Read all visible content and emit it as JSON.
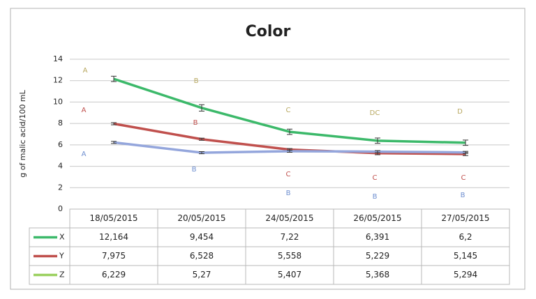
{
  "chart_data": {
    "type": "line",
    "title": "Color",
    "y_label": "g of malic acid/100 mL",
    "categories": [
      "18/05/2015",
      "20/05/2015",
      "24/05/2015",
      "26/05/2015",
      "27/05/2015"
    ],
    "ylim": [
      0,
      14
    ],
    "yticks": [
      0,
      2,
      4,
      6,
      8,
      10,
      12,
      14
    ],
    "grid": true,
    "series": [
      {
        "name": "X",
        "color": "#3cb96a",
        "key_color": "#3cb96a",
        "values": [
          12.164,
          9.454,
          7.22,
          6.391,
          6.2
        ],
        "value_labels": [
          "12,164",
          "9,454",
          "7,22",
          "6,391",
          "6,2"
        ],
        "errors": [
          0.25,
          0.3,
          0.25,
          0.25,
          0.25
        ],
        "letters": [
          "A",
          "B",
          "C",
          "DC",
          "D"
        ],
        "letter_color": "#b8a860"
      },
      {
        "name": "Y",
        "color": "#c0504d",
        "key_color": "#c0504d",
        "values": [
          7.975,
          6.528,
          5.558,
          5.229,
          5.145
        ],
        "value_labels": [
          "7,975",
          "6,528",
          "5,558",
          "5,229",
          "5,145"
        ],
        "errors": [
          0.1,
          0.1,
          0.1,
          0.15,
          0.15
        ],
        "letters": [
          "A",
          "B",
          "C",
          "C",
          "C"
        ],
        "letter_color": "#c0504d"
      },
      {
        "name": "Z",
        "color": "#94a6dc",
        "key_color": "#9bd060",
        "values": [
          6.229,
          5.27,
          5.407,
          5.368,
          5.294
        ],
        "value_labels": [
          "6,229",
          "5,27",
          "5,407",
          "5,368",
          "5,294"
        ],
        "errors": [
          0.1,
          0.1,
          0.1,
          0.1,
          0.1
        ],
        "letters": [
          "A",
          "B",
          "B",
          "B",
          "B"
        ],
        "letter_color": "#6f8fd0"
      }
    ]
  }
}
